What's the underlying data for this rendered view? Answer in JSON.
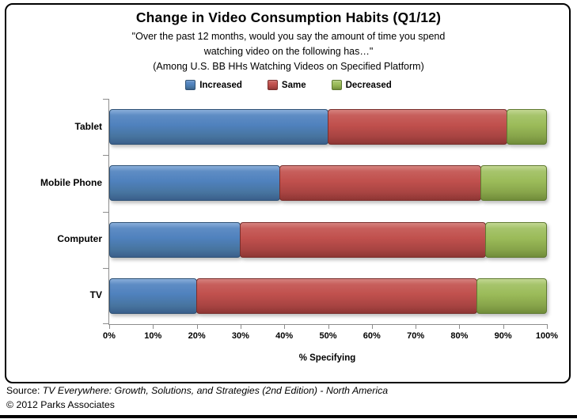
{
  "title": "Change in Video Consumption Habits (Q1/12)",
  "subtitle_lines": [
    "\"Over the past 12 months, would you say the amount of time you spend",
    "watching video on the following has…\"",
    "(Among U.S. BB HHs Watching Videos on Specified Platform)"
  ],
  "legend": [
    {
      "label": "Increased",
      "color": "#4F81BD"
    },
    {
      "label": "Same",
      "color": "#C0504D"
    },
    {
      "label": "Decreased",
      "color": "#9BBB59"
    }
  ],
  "chart_data": {
    "type": "bar",
    "orientation": "horizontal",
    "stacked": true,
    "title": "Change in Video Consumption Habits (Q1/12)",
    "categories": [
      "Tablet",
      "Mobile Phone",
      "Computer",
      "TV"
    ],
    "series": [
      {
        "name": "Increased",
        "color": "#4F81BD",
        "values": [
          50,
          39,
          30,
          20
        ]
      },
      {
        "name": "Same",
        "color": "#C0504D",
        "values": [
          41,
          46,
          56,
          64
        ]
      },
      {
        "name": "Decreased",
        "color": "#9BBB59",
        "values": [
          9,
          15,
          14,
          16
        ]
      }
    ],
    "xlabel": "% Specifying",
    "ylabel": "",
    "xlim": [
      0,
      100
    ],
    "x_ticks": [
      "0%",
      "10%",
      "20%",
      "30%",
      "40%",
      "50%",
      "60%",
      "70%",
      "80%",
      "90%",
      "100%"
    ],
    "grid": false,
    "legend_position": "top"
  },
  "footer": {
    "source_prefix": "Source: ",
    "source_italic": "TV Everywhere: Growth, Solutions, and Strategies (2nd Edition) - North America",
    "copyright": "© 2012 Parks Associates"
  }
}
